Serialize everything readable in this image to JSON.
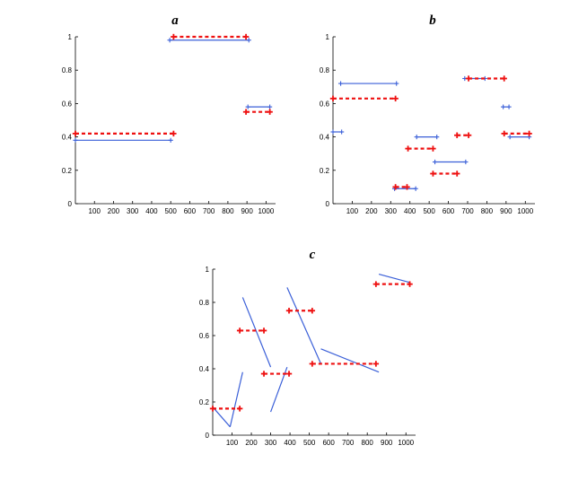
{
  "colors": {
    "blue": "#3a5fd8",
    "red": "#ee1111",
    "axis": "#000000",
    "background": "#ffffff"
  },
  "chart_data": [
    {
      "type": "line",
      "title": "a",
      "xlabel": "",
      "ylabel": "",
      "xlim": [
        0,
        1050
      ],
      "ylim": [
        0,
        1
      ],
      "xticks": [
        100,
        200,
        300,
        400,
        500,
        600,
        700,
        800,
        900,
        1000
      ],
      "yticks": [
        0,
        0.2,
        0.4,
        0.6,
        0.8,
        1
      ],
      "grid": false,
      "series": [
        {
          "color": "blue",
          "style": "solid",
          "marker": "plus",
          "segments": [
            [
              [
                0,
                0.38
              ],
              [
                500,
                0.38
              ]
            ],
            [
              [
                495,
                0.98
              ],
              [
                910,
                0.98
              ]
            ],
            [
              [
                905,
                0.58
              ],
              [
                1020,
                0.58
              ]
            ]
          ]
        },
        {
          "color": "red",
          "style": "dashed",
          "marker": "plus",
          "segments": [
            [
              [
                0,
                0.42
              ],
              [
                515,
                0.42
              ]
            ],
            [
              [
                515,
                1.0
              ],
              [
                895,
                1.0
              ]
            ],
            [
              [
                895,
                0.55
              ],
              [
                1020,
                0.55
              ]
            ]
          ]
        }
      ]
    },
    {
      "type": "line",
      "title": "b",
      "xlabel": "",
      "ylabel": "",
      "xlim": [
        0,
        1050
      ],
      "ylim": [
        0,
        1
      ],
      "xticks": [
        100,
        200,
        300,
        400,
        500,
        600,
        700,
        800,
        900,
        1000
      ],
      "yticks": [
        0,
        0.2,
        0.4,
        0.6,
        0.8,
        1
      ],
      "grid": false,
      "series": [
        {
          "color": "blue",
          "style": "solid",
          "marker": "plus",
          "segments": [
            [
              [
                0,
                0.43
              ],
              [
                45,
                0.43
              ]
            ],
            [
              [
                40,
                0.72
              ],
              [
                330,
                0.72
              ]
            ],
            [
              [
                320,
                0.09
              ],
              [
                430,
                0.09
              ]
            ],
            [
              [
                435,
                0.4
              ],
              [
                540,
                0.4
              ]
            ],
            [
              [
                530,
                0.25
              ],
              [
                690,
                0.25
              ]
            ],
            [
              [
                685,
                0.75
              ],
              [
                790,
                0.75
              ]
            ],
            [
              [
                885,
                0.58
              ],
              [
                915,
                0.58
              ]
            ],
            [
              [
                920,
                0.4
              ],
              [
                1020,
                0.4
              ]
            ]
          ]
        },
        {
          "color": "red",
          "style": "dashed",
          "marker": "plus",
          "segments": [
            [
              [
                0,
                0.63
              ],
              [
                325,
                0.63
              ]
            ],
            [
              [
                325,
                0.1
              ],
              [
                385,
                0.1
              ]
            ],
            [
              [
                390,
                0.33
              ],
              [
                520,
                0.33
              ]
            ],
            [
              [
                520,
                0.18
              ],
              [
                645,
                0.18
              ]
            ],
            [
              [
                645,
                0.41
              ],
              [
                705,
                0.41
              ]
            ],
            [
              [
                705,
                0.75
              ],
              [
                890,
                0.75
              ]
            ],
            [
              [
                890,
                0.42
              ],
              [
                1020,
                0.42
              ]
            ]
          ]
        }
      ]
    },
    {
      "type": "line",
      "title": "c",
      "xlabel": "",
      "ylabel": "",
      "xlim": [
        0,
        1050
      ],
      "ylim": [
        0,
        1
      ],
      "xticks": [
        100,
        200,
        300,
        400,
        500,
        600,
        700,
        800,
        900,
        1000
      ],
      "yticks": [
        0,
        0.2,
        0.4,
        0.6,
        0.8,
        1
      ],
      "grid": false,
      "series": [
        {
          "color": "blue",
          "style": "solid",
          "marker": "none",
          "segments": [
            [
              [
                0,
                0.17
              ],
              [
                90,
                0.05
              ]
            ],
            [
              [
                90,
                0.05
              ],
              [
                155,
                0.38
              ]
            ],
            [
              [
                155,
                0.83
              ],
              [
                300,
                0.41
              ]
            ],
            [
              [
                300,
                0.14
              ],
              [
                385,
                0.41
              ]
            ],
            [
              [
                385,
                0.89
              ],
              [
                560,
                0.43
              ]
            ],
            [
              [
                560,
                0.52
              ],
              [
                860,
                0.38
              ]
            ],
            [
              [
                860,
                0.97
              ],
              [
                1020,
                0.92
              ]
            ]
          ]
        },
        {
          "color": "red",
          "style": "dashed",
          "marker": "plus",
          "segments": [
            [
              [
                0,
                0.16
              ],
              [
                140,
                0.16
              ]
            ],
            [
              [
                140,
                0.63
              ],
              [
                265,
                0.63
              ]
            ],
            [
              [
                265,
                0.37
              ],
              [
                395,
                0.37
              ]
            ],
            [
              [
                395,
                0.75
              ],
              [
                515,
                0.75
              ]
            ],
            [
              [
                515,
                0.43
              ],
              [
                845,
                0.43
              ]
            ],
            [
              [
                845,
                0.91
              ],
              [
                1020,
                0.91
              ]
            ]
          ]
        }
      ]
    }
  ]
}
